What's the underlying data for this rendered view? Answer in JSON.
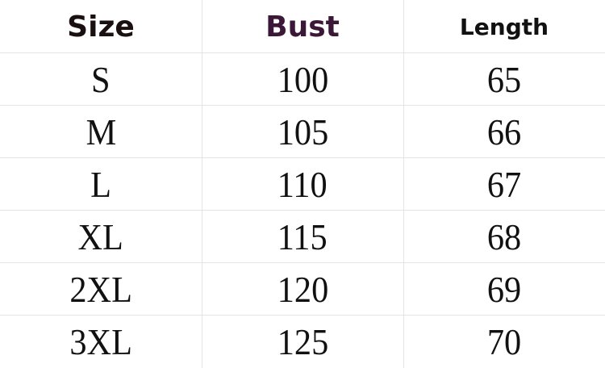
{
  "table": {
    "header": [
      "Size",
      "Bust",
      "Length"
    ],
    "rows": [
      [
        "S",
        100,
        65
      ],
      [
        "M",
        105,
        66
      ],
      [
        "L",
        110,
        67
      ],
      [
        "XL",
        115,
        68
      ],
      [
        "2XL",
        120,
        69
      ],
      [
        "3XL",
        125,
        70
      ]
    ]
  }
}
